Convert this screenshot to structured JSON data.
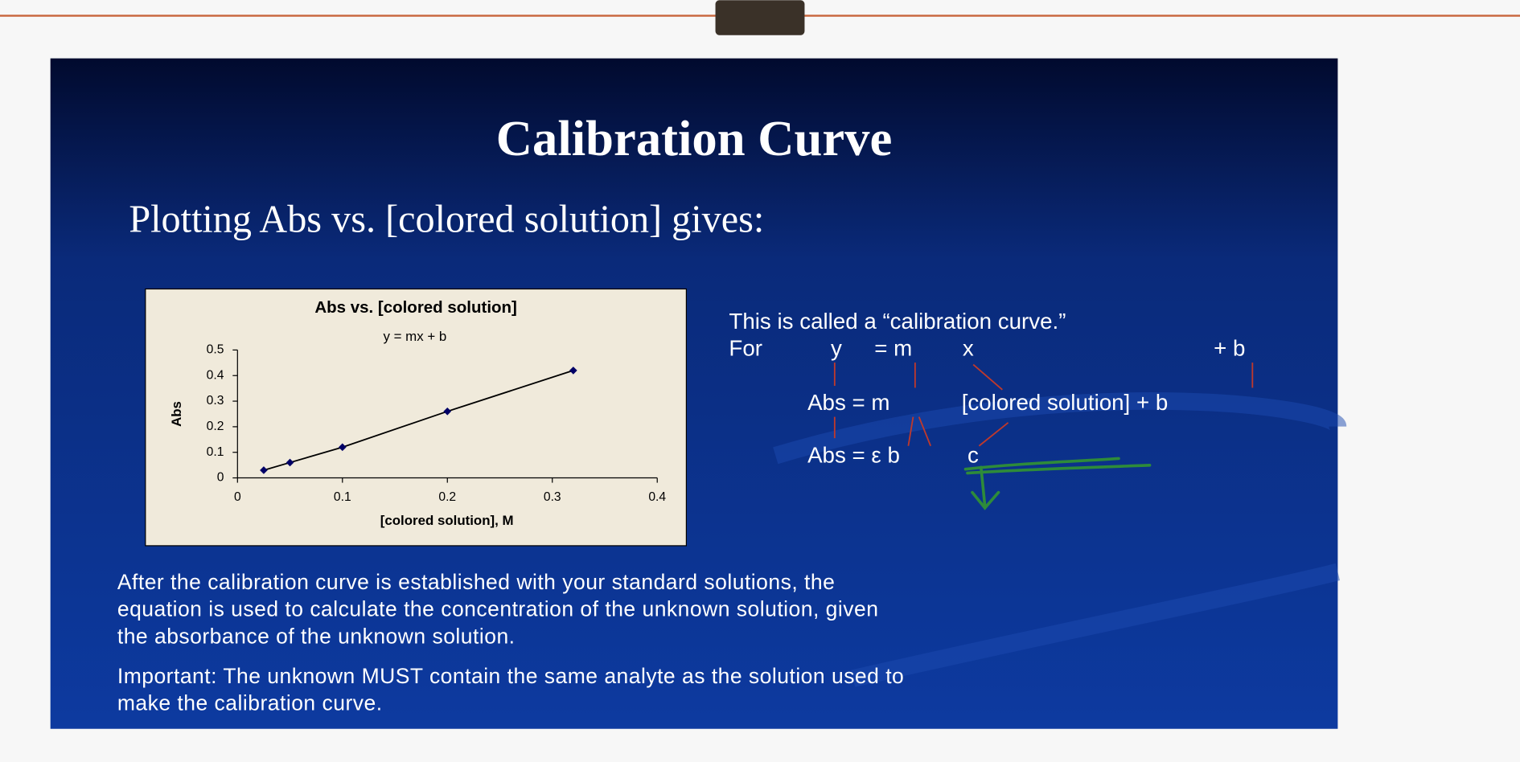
{
  "slide": {
    "title": "Calibration Curve",
    "subtitle": "Plotting Abs vs. [colored solution] gives:",
    "equations": {
      "intro": "This is called a “calibration curve.”",
      "for": "For",
      "y": "y",
      "eq_m": "= m",
      "x": "x",
      "plus_b": "+ b",
      "abs_m": "Abs = m",
      "colored_b": "[colored solution] + b",
      "abs_eb": "Abs = ε b",
      "c": "c"
    },
    "paragraphs": [
      [
        "After the calibration curve is established with your standard solutions, the",
        "equation is used to calculate the concentration of the unknown solution, given",
        "the absorbance of the unknown solution."
      ],
      [
        "Important: The unknown MUST contain the same analyte as the solution used to",
        "make the calibration curve."
      ]
    ]
  },
  "chart_data": {
    "type": "scatter",
    "title": "Abs vs. [colored solution]",
    "subtitle": "y = mx + b",
    "x_label": "[colored solution], M",
    "y_label": "Abs",
    "x": [
      0.025,
      0.05,
      0.1,
      0.2,
      0.32
    ],
    "series": [
      {
        "name": "Abs",
        "color": "#000066",
        "values": [
          0.03,
          0.06,
          0.12,
          0.26,
          0.42
        ]
      }
    ],
    "xlim": [
      0,
      0.4
    ],
    "ylim": [
      0,
      0.5
    ],
    "xticks": [
      0,
      0.1,
      0.2,
      0.3,
      0.4
    ],
    "yticks": [
      0,
      0.1,
      0.2,
      0.3,
      0.4,
      0.5
    ],
    "grid": false
  }
}
